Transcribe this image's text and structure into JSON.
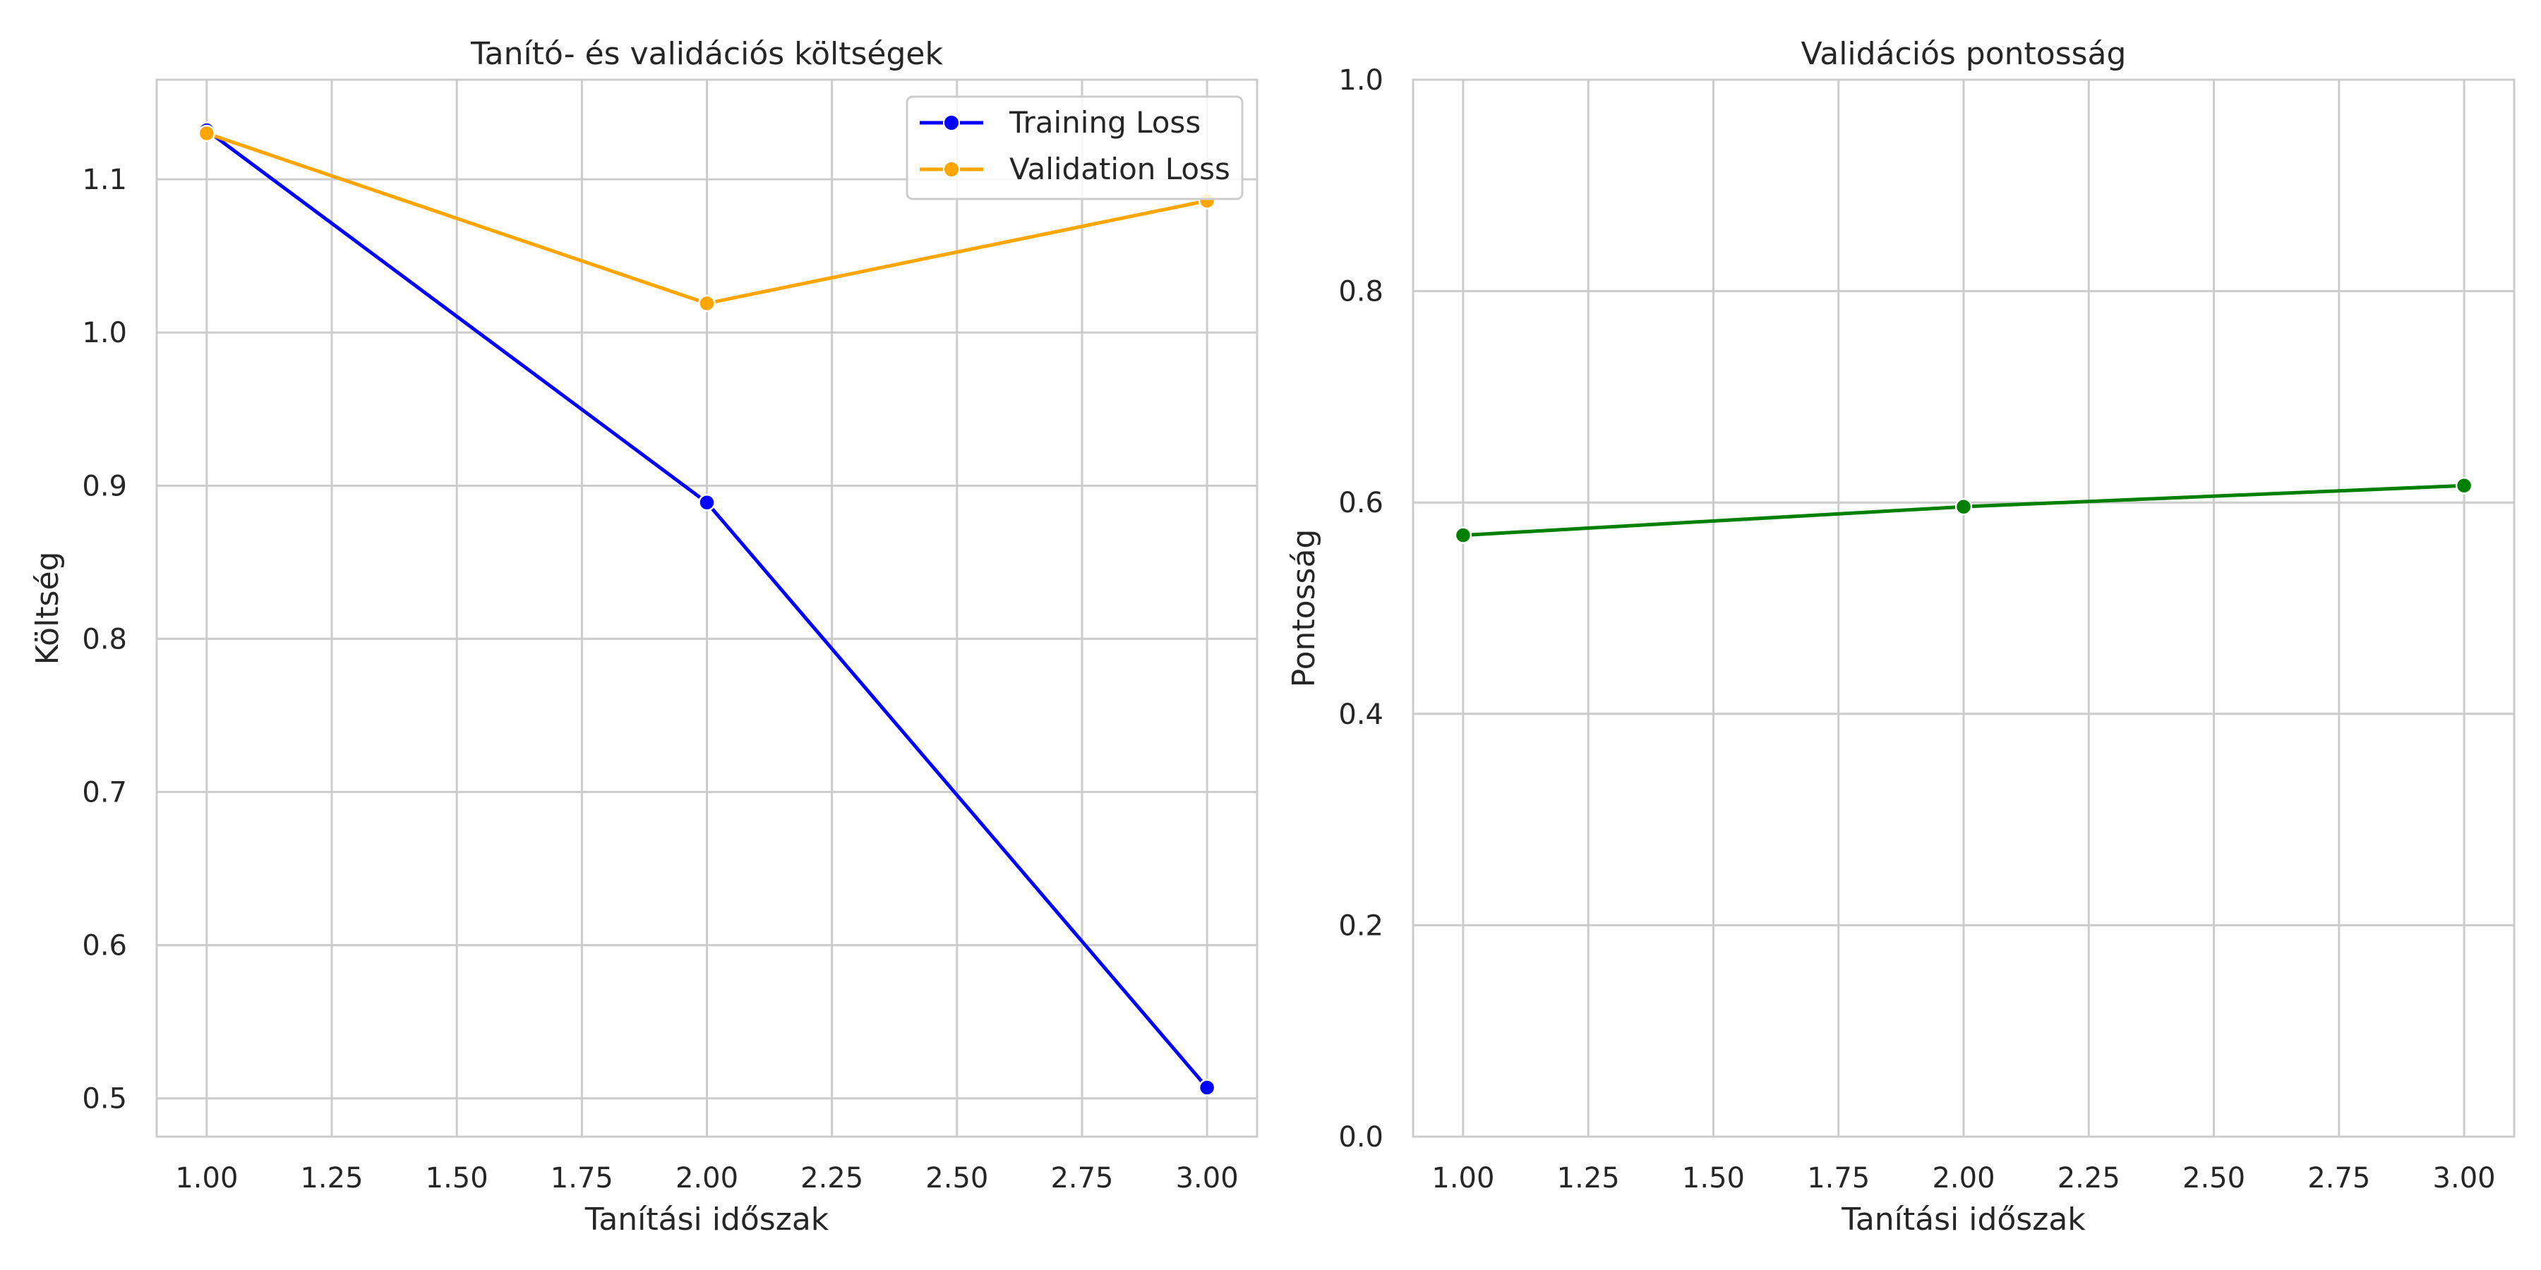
{
  "chart_data": [
    {
      "type": "line",
      "title": "Tanító- és validációs költségek",
      "xlabel": "Tanítási időszak",
      "ylabel": "Költség",
      "x": [
        1,
        2,
        3
      ],
      "xlim": [
        0.9,
        3.1
      ],
      "ylim": [
        0.475,
        1.165
      ],
      "xticks": [
        "1.00",
        "1.25",
        "1.50",
        "1.75",
        "2.00",
        "2.25",
        "2.50",
        "2.75",
        "3.00"
      ],
      "yticks": [
        "0.5",
        "0.6",
        "0.7",
        "0.8",
        "0.9",
        "1.0",
        "1.1"
      ],
      "grid": true,
      "legend": "top-right",
      "series": [
        {
          "name": "Training Loss",
          "values": [
            1.132,
            0.889,
            0.507
          ],
          "color": "#0000ff"
        },
        {
          "name": "Validation Loss",
          "values": [
            1.13,
            1.019,
            1.086
          ],
          "color": "#ffa500"
        }
      ]
    },
    {
      "type": "line",
      "title": "Validációs pontosság",
      "xlabel": "Tanítási időszak",
      "ylabel": "Pontosság",
      "x": [
        1,
        2,
        3
      ],
      "xlim": [
        0.9,
        3.1
      ],
      "ylim": [
        0,
        1
      ],
      "xticks": [
        "1.00",
        "1.25",
        "1.50",
        "1.75",
        "2.00",
        "2.25",
        "2.50",
        "2.75",
        "3.00"
      ],
      "yticks": [
        "0.0",
        "0.2",
        "0.4",
        "0.6",
        "0.8",
        "1.0"
      ],
      "grid": true,
      "legend": "none",
      "series": [
        {
          "values": [
            0.569,
            0.596,
            0.616
          ],
          "color": "#008000"
        }
      ]
    }
  ]
}
